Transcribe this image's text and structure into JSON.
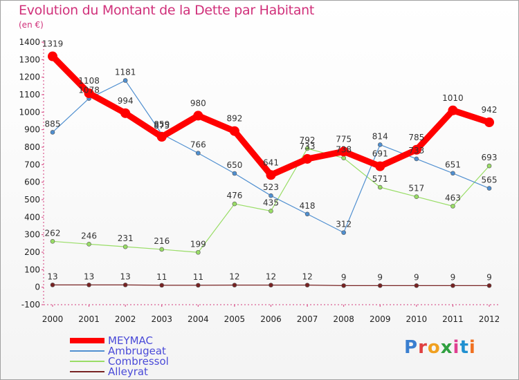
{
  "header": {
    "title": "Evolution du Montant de la Dette par Habitant",
    "unit": "(en €)"
  },
  "logo": {
    "text": "Proxiti",
    "colors": [
      "#3a7fd0",
      "#e04040",
      "#f0a020",
      "#30a040",
      "#e04090",
      "#2090d0",
      "#f07020"
    ]
  },
  "chart_data": {
    "type": "line",
    "title": "Evolution du Montant de la Dette par Habitant",
    "ylabel": "(en €)",
    "xlabel": "",
    "ylim": [
      -100,
      1400
    ],
    "yticks": [
      -100,
      0,
      100,
      200,
      300,
      400,
      500,
      600,
      700,
      800,
      900,
      1000,
      1100,
      1200,
      1300,
      1400
    ],
    "grid": false,
    "legend": "bottom-left",
    "x": [
      "2000",
      "2001",
      "2002",
      "2003",
      "2004",
      "2005",
      "2006",
      "2007",
      "2008",
      "2009",
      "2010",
      "2011",
      "2012"
    ],
    "series": [
      {
        "name": "MEYMAC",
        "color": "#ff0000",
        "values": [
          1319,
          1108,
          994,
          859,
          980,
          892,
          641,
          733,
          775,
          691,
          785,
          1010,
          942
        ]
      },
      {
        "name": "Ambrugeat",
        "color": "#4f8fd0",
        "values": [
          885,
          1078,
          1181,
          875,
          766,
          650,
          523,
          418,
          312,
          814,
          733,
          651,
          565
        ]
      },
      {
        "name": "Combressol",
        "color": "#99dd66",
        "values": [
          262,
          246,
          231,
          216,
          199,
          476,
          435,
          792,
          738,
          571,
          517,
          463,
          693
        ]
      },
      {
        "name": "Alleyrat",
        "color": "#772222",
        "values": [
          13,
          13,
          13,
          11,
          11,
          12,
          12,
          12,
          9,
          9,
          9,
          9,
          9
        ]
      }
    ]
  }
}
